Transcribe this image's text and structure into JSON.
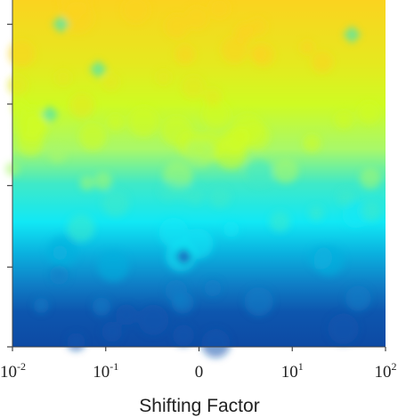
{
  "chart_data": {
    "type": "heatmap",
    "title": "",
    "xlabel": "Shifting Factor",
    "ylabel": "",
    "x_ticks": [
      {
        "base": "10",
        "exp": "-2"
      },
      {
        "base": "10",
        "exp": "-1"
      },
      {
        "base": "0",
        "exp": ""
      },
      {
        "base": "10",
        "exp": "1"
      },
      {
        "base": "10",
        "exp": "2"
      }
    ],
    "y_tick_count": 5,
    "grid": false,
    "legend": "none",
    "colormap": [
      "#0d47a8",
      "#0a6fc8",
      "#0ea0dc",
      "#19e6ea",
      "#8ef58d",
      "#d6f91e",
      "#ffd21e"
    ],
    "vertical_gradient": [
      {
        "level": 0.0,
        "color": "#fbd31f"
      },
      {
        "level": 0.18,
        "color": "#e6e81f"
      },
      {
        "level": 0.3,
        "color": "#cffb23"
      },
      {
        "level": 0.43,
        "color": "#a8f86a"
      },
      {
        "level": 0.53,
        "color": "#3fe9c8"
      },
      {
        "level": 0.64,
        "color": "#11e8f5"
      },
      {
        "level": 0.73,
        "color": "#0ab1df"
      },
      {
        "level": 0.82,
        "color": "#0f7ec6"
      },
      {
        "level": 0.9,
        "color": "#0d56ae"
      },
      {
        "level": 1.0,
        "color": "#0d4aa4"
      }
    ]
  }
}
